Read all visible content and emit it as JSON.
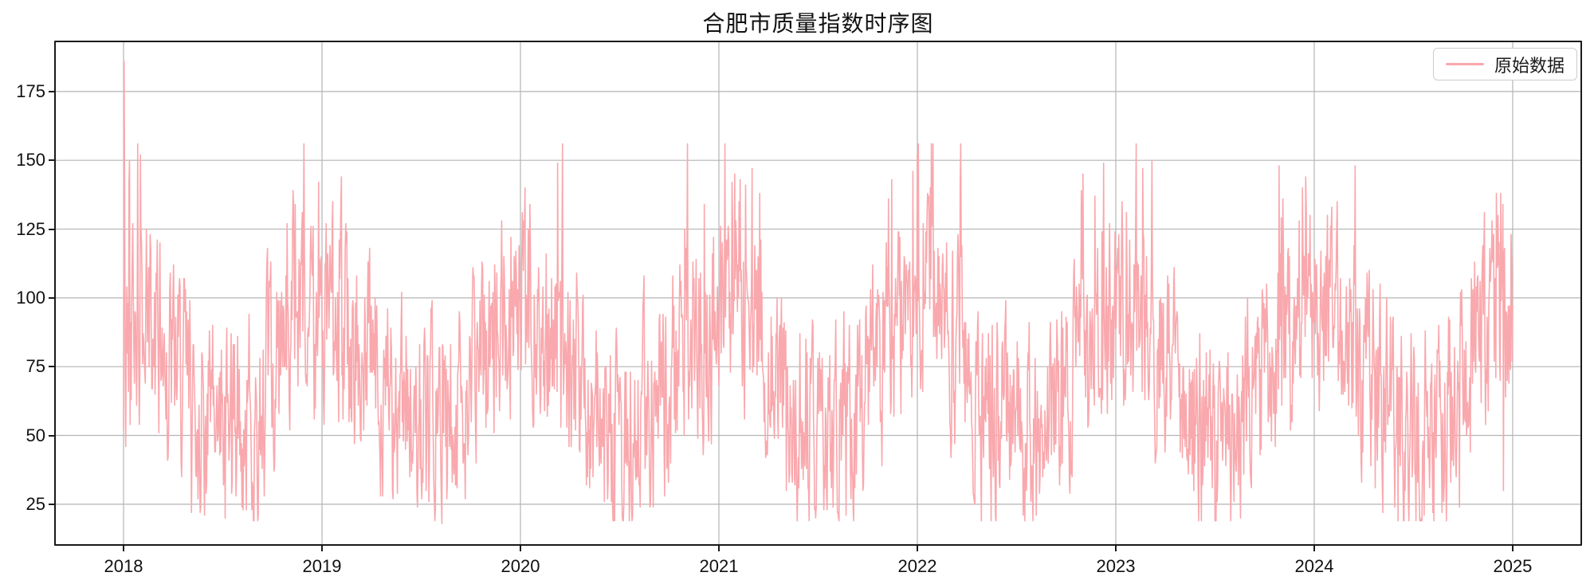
{
  "figure": {
    "title": "合肥市质量指数时序图",
    "background_color": "#ffffff"
  },
  "legend": {
    "label": "原始数据",
    "position": "top-right",
    "border_color": "#cccccc"
  },
  "chart_data": {
    "type": "line",
    "title": "合肥市质量指数时序图",
    "xlabel": "",
    "ylabel": "",
    "legend_entries": [
      {
        "label": "原始数据",
        "color": "#f9a8ad"
      }
    ],
    "line_color": "#f9a8ad",
    "grid": true,
    "grid_color": "#b4b4b4",
    "spine_color": "#1a1a1a",
    "x_start": "2018-01-01",
    "x_end": "2025-01-01",
    "frequency": "daily",
    "n_points": 2558,
    "xticks": [
      2018,
      2019,
      2020,
      2021,
      2022,
      2023,
      2024,
      2025
    ],
    "yticks": [
      25,
      50,
      75,
      100,
      125,
      150,
      175
    ],
    "ylim": [
      9.9,
      193.5
    ],
    "x_margin_frac": 0.0454,
    "series_summary": {
      "name": "原始数据",
      "max": 186,
      "max_at": "2018-01-02",
      "min": 18,
      "min_at": "2019-08-10",
      "mean_approx": 74,
      "winter_peak_range": [
        140,
        156
      ],
      "summer_low_range": [
        19,
        35
      ],
      "typical_daily_range": [
        30,
        130
      ],
      "last_value_approx": 97
    },
    "anchors": [
      {
        "day": 0,
        "value": 52
      },
      {
        "day": 1,
        "value": 186
      },
      {
        "day": 2,
        "value": 142
      },
      {
        "day": 3,
        "value": 74
      },
      {
        "day": 4,
        "value": 46
      },
      {
        "day": 11,
        "value": 150
      },
      {
        "day": 586,
        "value": 18
      },
      {
        "day": 2540,
        "value": 30
      },
      {
        "day": 2554,
        "value": 123
      },
      {
        "day": 2557,
        "value": 97
      }
    ],
    "generator": {
      "seed": 42,
      "base": 73,
      "seasonal_amplitude": 20,
      "seasonal_phase_day": 10,
      "ar": 0.5,
      "noise": 30,
      "winter_spike_prob": 0.1,
      "winter_spike_add": [
        25,
        55
      ],
      "summer_dip_prob": 0.08,
      "summer_dip_sub": [
        10,
        25
      ],
      "clip": [
        19,
        156
      ]
    }
  }
}
